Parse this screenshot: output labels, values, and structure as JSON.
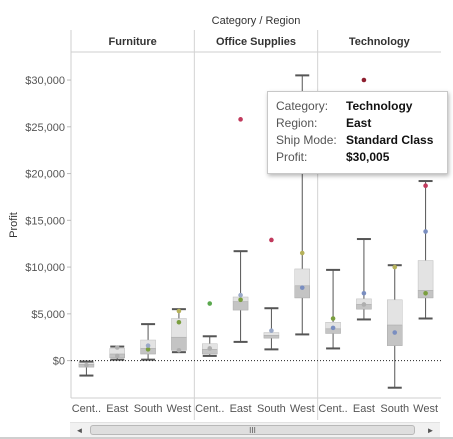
{
  "chart_data": {
    "type": "boxplot",
    "title": "Category / Region",
    "ylabel": "Profit",
    "ylim": [
      -4000,
      33000
    ],
    "yticks": [
      0,
      5000,
      10000,
      15000,
      20000,
      25000,
      30000
    ],
    "ytick_labels": [
      "$0",
      "$5,000",
      "$10,000",
      "$15,000",
      "$20,000",
      "$25,000",
      "$30,000"
    ],
    "grid": false,
    "panels": [
      {
        "category": "Furniture",
        "regions": [
          {
            "region": "Cent..",
            "min": -1600,
            "q1": -700,
            "median": -400,
            "q3": -200,
            "max": -100,
            "points": [
              {
                "y": -500,
                "color": "#aeaeae"
              }
            ]
          },
          {
            "region": "East",
            "min": 100,
            "q1": 300,
            "median": 700,
            "q3": 1300,
            "max": 1500,
            "points": [
              {
                "y": 1400,
                "color": "#aeaeae"
              },
              {
                "y": 500,
                "color": "#aeaeae"
              }
            ]
          },
          {
            "region": "South",
            "min": 100,
            "q1": 700,
            "median": 1300,
            "q3": 2200,
            "max": 3900,
            "points": [
              {
                "y": 1200,
                "color": "#7a9e3e"
              },
              {
                "y": 1600,
                "color": "#9aa9c8"
              }
            ]
          },
          {
            "region": "West",
            "min": 900,
            "q1": 1100,
            "median": 2500,
            "q3": 4500,
            "max": 5500,
            "points": [
              {
                "y": 5300,
                "color": "#b5b15a"
              },
              {
                "y": 4100,
                "color": "#7a9e3e"
              },
              {
                "y": 1100,
                "color": "#aeaeae"
              }
            ]
          }
        ]
      },
      {
        "category": "Office Supplies",
        "regions": [
          {
            "region": "Cent..",
            "min": 500,
            "q1": 700,
            "median": 1200,
            "q3": 1800,
            "max": 2600,
            "points": [
              {
                "y": 6100,
                "color": "#5aa84e"
              },
              {
                "y": 1300,
                "color": "#aeaeae"
              }
            ]
          },
          {
            "region": "East",
            "min": 2000,
            "q1": 5400,
            "median": 6300,
            "q3": 6800,
            "max": 11700,
            "points": [
              {
                "y": 25800,
                "color": "#c13a5d"
              },
              {
                "y": 6500,
                "color": "#7a9e3e"
              },
              {
                "y": 7000,
                "color": "#9aa9c8"
              }
            ]
          },
          {
            "region": "South",
            "min": 1200,
            "q1": 2400,
            "median": 2700,
            "q3": 3000,
            "max": 5600,
            "points": [
              {
                "y": 12900,
                "color": "#c13a5d"
              },
              {
                "y": 3200,
                "color": "#9aa9c8"
              }
            ]
          },
          {
            "region": "West",
            "min": 2800,
            "q1": 6700,
            "median": 8000,
            "q3": 9800,
            "max": 30500,
            "points": [
              {
                "y": 11500,
                "color": "#b5b15a"
              },
              {
                "y": 7800,
                "color": "#7a8ec0"
              }
            ]
          }
        ]
      },
      {
        "category": "Technology",
        "regions": [
          {
            "region": "Cent..",
            "min": 1300,
            "q1": 2900,
            "median": 3400,
            "q3": 4100,
            "max": 9700,
            "points": [
              {
                "y": 4500,
                "color": "#7a9e3e"
              },
              {
                "y": 3500,
                "color": "#7a8ec0"
              }
            ]
          },
          {
            "region": "East",
            "min": 4400,
            "q1": 5500,
            "median": 6000,
            "q3": 6600,
            "max": 13000,
            "points": [
              {
                "y": 30005,
                "color": "#8e1f2f"
              },
              {
                "y": 7200,
                "color": "#7a8ec0"
              },
              {
                "y": 6000,
                "color": "#aeaeae"
              }
            ]
          },
          {
            "region": "South",
            "min": -2900,
            "q1": 1600,
            "median": 3800,
            "q3": 6500,
            "max": 10200,
            "points": [
              {
                "y": 10000,
                "color": "#b5b15a"
              },
              {
                "y": 3000,
                "color": "#7a8ec0"
              }
            ]
          },
          {
            "region": "West",
            "min": 4500,
            "q1": 6700,
            "median": 7500,
            "q3": 10700,
            "max": 19200,
            "points": [
              {
                "y": 18700,
                "color": "#c13a5d"
              },
              {
                "y": 13800,
                "color": "#7a8ec0"
              },
              {
                "y": 7200,
                "color": "#7a9e3e"
              }
            ]
          }
        ]
      }
    ],
    "colors": {
      "upper_box": "#e3e3e3",
      "lower_box": "#c4c4c4",
      "whisker": "#555555",
      "zero_line": "#222222",
      "panel_divider": "#d2d2d2"
    }
  },
  "tooltip": {
    "rows": [
      {
        "key": "Category:",
        "value": "Technology"
      },
      {
        "key": "Region:",
        "value": "East"
      },
      {
        "key": "Ship Mode:",
        "value": "Standard Class"
      },
      {
        "key": "Profit:",
        "value": "$30,005"
      }
    ]
  },
  "scrollbar": {
    "left_arrow": "◄",
    "right_arrow": "►",
    "thumb_grip": "III"
  }
}
